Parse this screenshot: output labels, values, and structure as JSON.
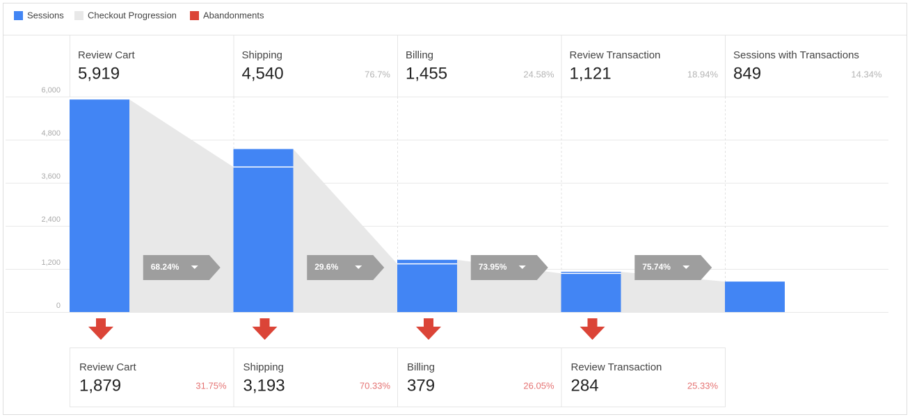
{
  "chart_data": {
    "type": "bar",
    "categories": [
      "Review Cart",
      "Shipping",
      "Billing",
      "Review Transaction",
      "Sessions with Transactions"
    ],
    "series": [
      {
        "name": "Sessions",
        "color": "#4285f4",
        "values": [
          5919,
          4540,
          1455,
          1121,
          849
        ],
        "value_labels": [
          "5,919",
          "4,540",
          "1,455",
          "1,121",
          "849"
        ],
        "share_values": [
          null,
          76.7,
          24.58,
          18.94,
          14.34
        ],
        "share_labels": [
          null,
          "76.7%",
          "24.58%",
          "18.94%",
          "14.34%"
        ]
      }
    ],
    "progression": {
      "name": "Checkout Progression",
      "color": "#e8e8e8",
      "values": [
        68.24,
        29.6,
        73.95,
        75.74
      ],
      "value_labels": [
        "68.24%",
        "29.6%",
        "73.95%",
        "75.74%"
      ]
    },
    "abandonments": {
      "name": "Abandonments",
      "color": "#db4437",
      "values": [
        1879,
        3193,
        379,
        284
      ],
      "value_labels": [
        "1,879",
        "3,193",
        "379",
        "284"
      ],
      "share_values": [
        31.75,
        70.33,
        26.05,
        25.33
      ],
      "share_labels": [
        "31.75%",
        "70.33%",
        "26.05%",
        "25.33%"
      ]
    },
    "ylim": [
      0,
      6000
    ],
    "yticks": [
      0,
      {
        "value": 1200,
        "label": "1,200"
      },
      {
        "value": 2400,
        "label": "2,400"
      },
      {
        "value": 3600,
        "label": "3,600"
      },
      {
        "value": 4800,
        "label": "4,800"
      },
      {
        "value": 6000,
        "label": "6,000"
      }
    ],
    "grid": true
  }
}
